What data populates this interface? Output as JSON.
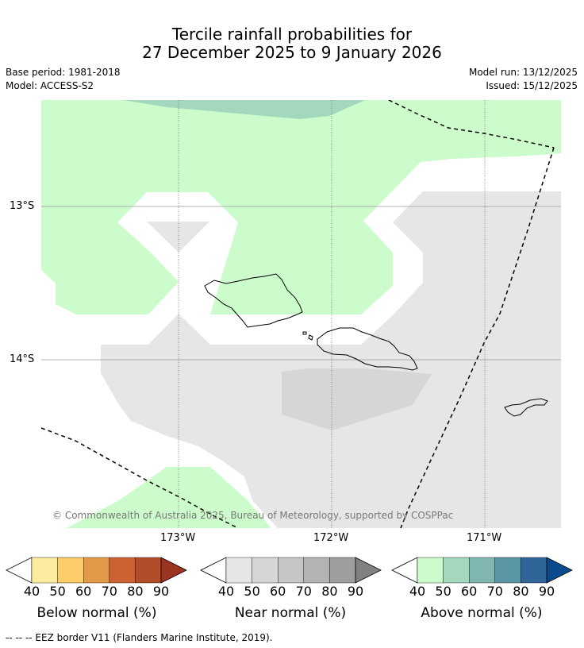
{
  "header": {
    "title_line1": "Tercile rainfall probabilities for",
    "title_line2": "27 December 2025 to 9 January 2026",
    "base_period": "Base period: 1981-2018",
    "model": "Model: ACCESS-S2",
    "model_run": "Model run: 13/12/2025",
    "issued": "Issued: 15/12/2025"
  },
  "map": {
    "lat_labels": [
      "13°S",
      "14°S"
    ],
    "lon_labels": [
      "173°W",
      "172°W",
      "171°W"
    ],
    "copyright": "© Commonwealth of Australia 2025, Bureau of Meteorology, supported by COSPPac"
  },
  "legends": [
    {
      "label": "Below normal (%)",
      "ticks": [
        "40",
        "50",
        "60",
        "70",
        "80",
        "90"
      ],
      "colors": [
        "#fdec9f",
        "#fdcd69",
        "#e39a48",
        "#cc6231",
        "#b24d29",
        "#9b3420"
      ]
    },
    {
      "label": "Near normal (%)",
      "ticks": [
        "40",
        "50",
        "60",
        "70",
        "80",
        "90"
      ],
      "colors": [
        "#e6e6e6",
        "#d6d6d6",
        "#c6c6c6",
        "#b3b3b3",
        "#9e9e9e",
        "#808080"
      ]
    },
    {
      "label": "Above normal (%)",
      "ticks": [
        "40",
        "50",
        "60",
        "70",
        "80",
        "90"
      ],
      "colors": [
        "#ccfccc",
        "#a3d8bf",
        "#7fb6b0",
        "#5a95a5",
        "#2f6598",
        "#0b4a8a"
      ]
    }
  ],
  "footer": "--  --  -- EEZ border V11 (Flanders Marine Institute, 2019)."
}
